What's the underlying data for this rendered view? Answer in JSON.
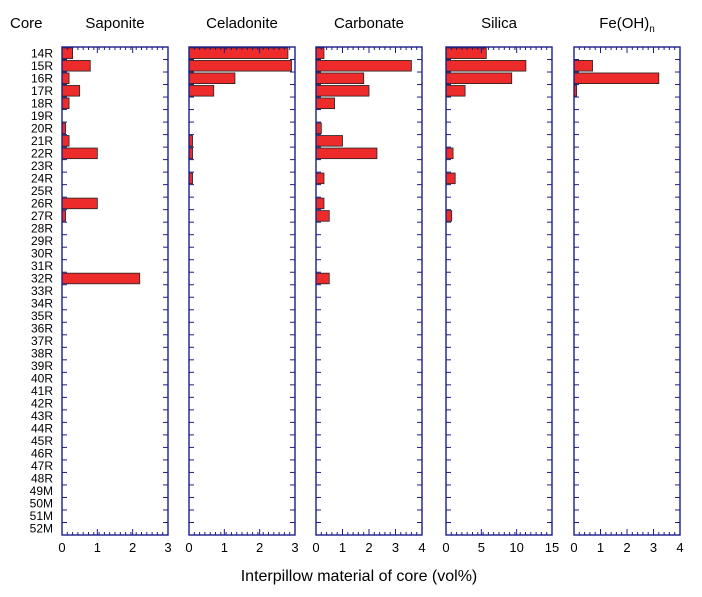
{
  "colors": {
    "bar": "#ee2b2b",
    "axis": "#1c1c8c",
    "text": "#000000"
  },
  "core_header": "Core",
  "xlabel": "Interpillow material of core (vol%)",
  "chart_data": {
    "type": "bar",
    "orientation": "horizontal",
    "xlabel": "Interpillow material of core (vol%)",
    "ylabel": "Core",
    "categories": [
      "14R",
      "15R",
      "16R",
      "17R",
      "18R",
      "19R",
      "20R",
      "21R",
      "22R",
      "23R",
      "24R",
      "25R",
      "26R",
      "27R",
      "28R",
      "29R",
      "30R",
      "31R",
      "32R",
      "33R",
      "34R",
      "35R",
      "36R",
      "37R",
      "38R",
      "39R",
      "40R",
      "41R",
      "42R",
      "43R",
      "44R",
      "45R",
      "46R",
      "47R",
      "48R",
      "49M",
      "50M",
      "51M",
      "52M"
    ],
    "panels": [
      {
        "title": "Saponite",
        "xlim": [
          0,
          3
        ],
        "xticks": [
          0,
          1,
          2,
          3
        ],
        "bars": [
          {
            "core": "14R",
            "value": 0.3
          },
          {
            "core": "15R",
            "value": 0.8
          },
          {
            "core": "16R",
            "value": 0.2
          },
          {
            "core": "17R",
            "value": 0.5
          },
          {
            "core": "18R",
            "value": 0.2
          },
          {
            "core": "20R",
            "value": 0.1
          },
          {
            "core": "21R",
            "value": 0.2
          },
          {
            "core": "22R",
            "value": 1.0
          },
          {
            "core": "26R",
            "value": 1.0
          },
          {
            "core": "27R",
            "value": 0.1
          },
          {
            "core": "32R",
            "value": 2.2
          }
        ]
      },
      {
        "title": "Celadonite",
        "xlim": [
          0,
          3
        ],
        "xticks": [
          0,
          1,
          2,
          3
        ],
        "bars": [
          {
            "core": "14R",
            "value": 2.8
          },
          {
            "core": "15R",
            "value": 2.9
          },
          {
            "core": "16R",
            "value": 1.3
          },
          {
            "core": "17R",
            "value": 0.7
          },
          {
            "core": "21R",
            "value": 0.1
          },
          {
            "core": "22R",
            "value": 0.1
          },
          {
            "core": "24R",
            "value": 0.1
          }
        ]
      },
      {
        "title": "Carbonate",
        "xlim": [
          0,
          4
        ],
        "xticks": [
          0,
          1,
          2,
          3,
          4
        ],
        "bars": [
          {
            "core": "14R",
            "value": 0.3
          },
          {
            "core": "15R",
            "value": 3.6
          },
          {
            "core": "16R",
            "value": 1.8
          },
          {
            "core": "17R",
            "value": 2.0
          },
          {
            "core": "18R",
            "value": 0.7
          },
          {
            "core": "20R",
            "value": 0.2
          },
          {
            "core": "21R",
            "value": 1.0
          },
          {
            "core": "22R",
            "value": 2.3
          },
          {
            "core": "24R",
            "value": 0.3
          },
          {
            "core": "26R",
            "value": 0.3
          },
          {
            "core": "27R",
            "value": 0.5
          },
          {
            "core": "32R",
            "value": 0.5
          }
        ]
      },
      {
        "title": "Silica",
        "xlim": [
          0,
          15
        ],
        "xticks": [
          0,
          5,
          10,
          15
        ],
        "bars": [
          {
            "core": "14R",
            "value": 5.7
          },
          {
            "core": "15R",
            "value": 11.3
          },
          {
            "core": "16R",
            "value": 9.3
          },
          {
            "core": "17R",
            "value": 2.7
          },
          {
            "core": "22R",
            "value": 1.0
          },
          {
            "core": "24R",
            "value": 1.3
          },
          {
            "core": "27R",
            "value": 0.8
          }
        ]
      },
      {
        "title": "Fe(OH)",
        "title_subscript": "n",
        "xlim": [
          0,
          4
        ],
        "xticks": [
          0,
          1,
          2,
          3,
          4
        ],
        "bars": [
          {
            "core": "15R",
            "value": 0.7
          },
          {
            "core": "16R",
            "value": 3.2
          },
          {
            "core": "17R",
            "value": 0.1
          }
        ]
      }
    ]
  }
}
